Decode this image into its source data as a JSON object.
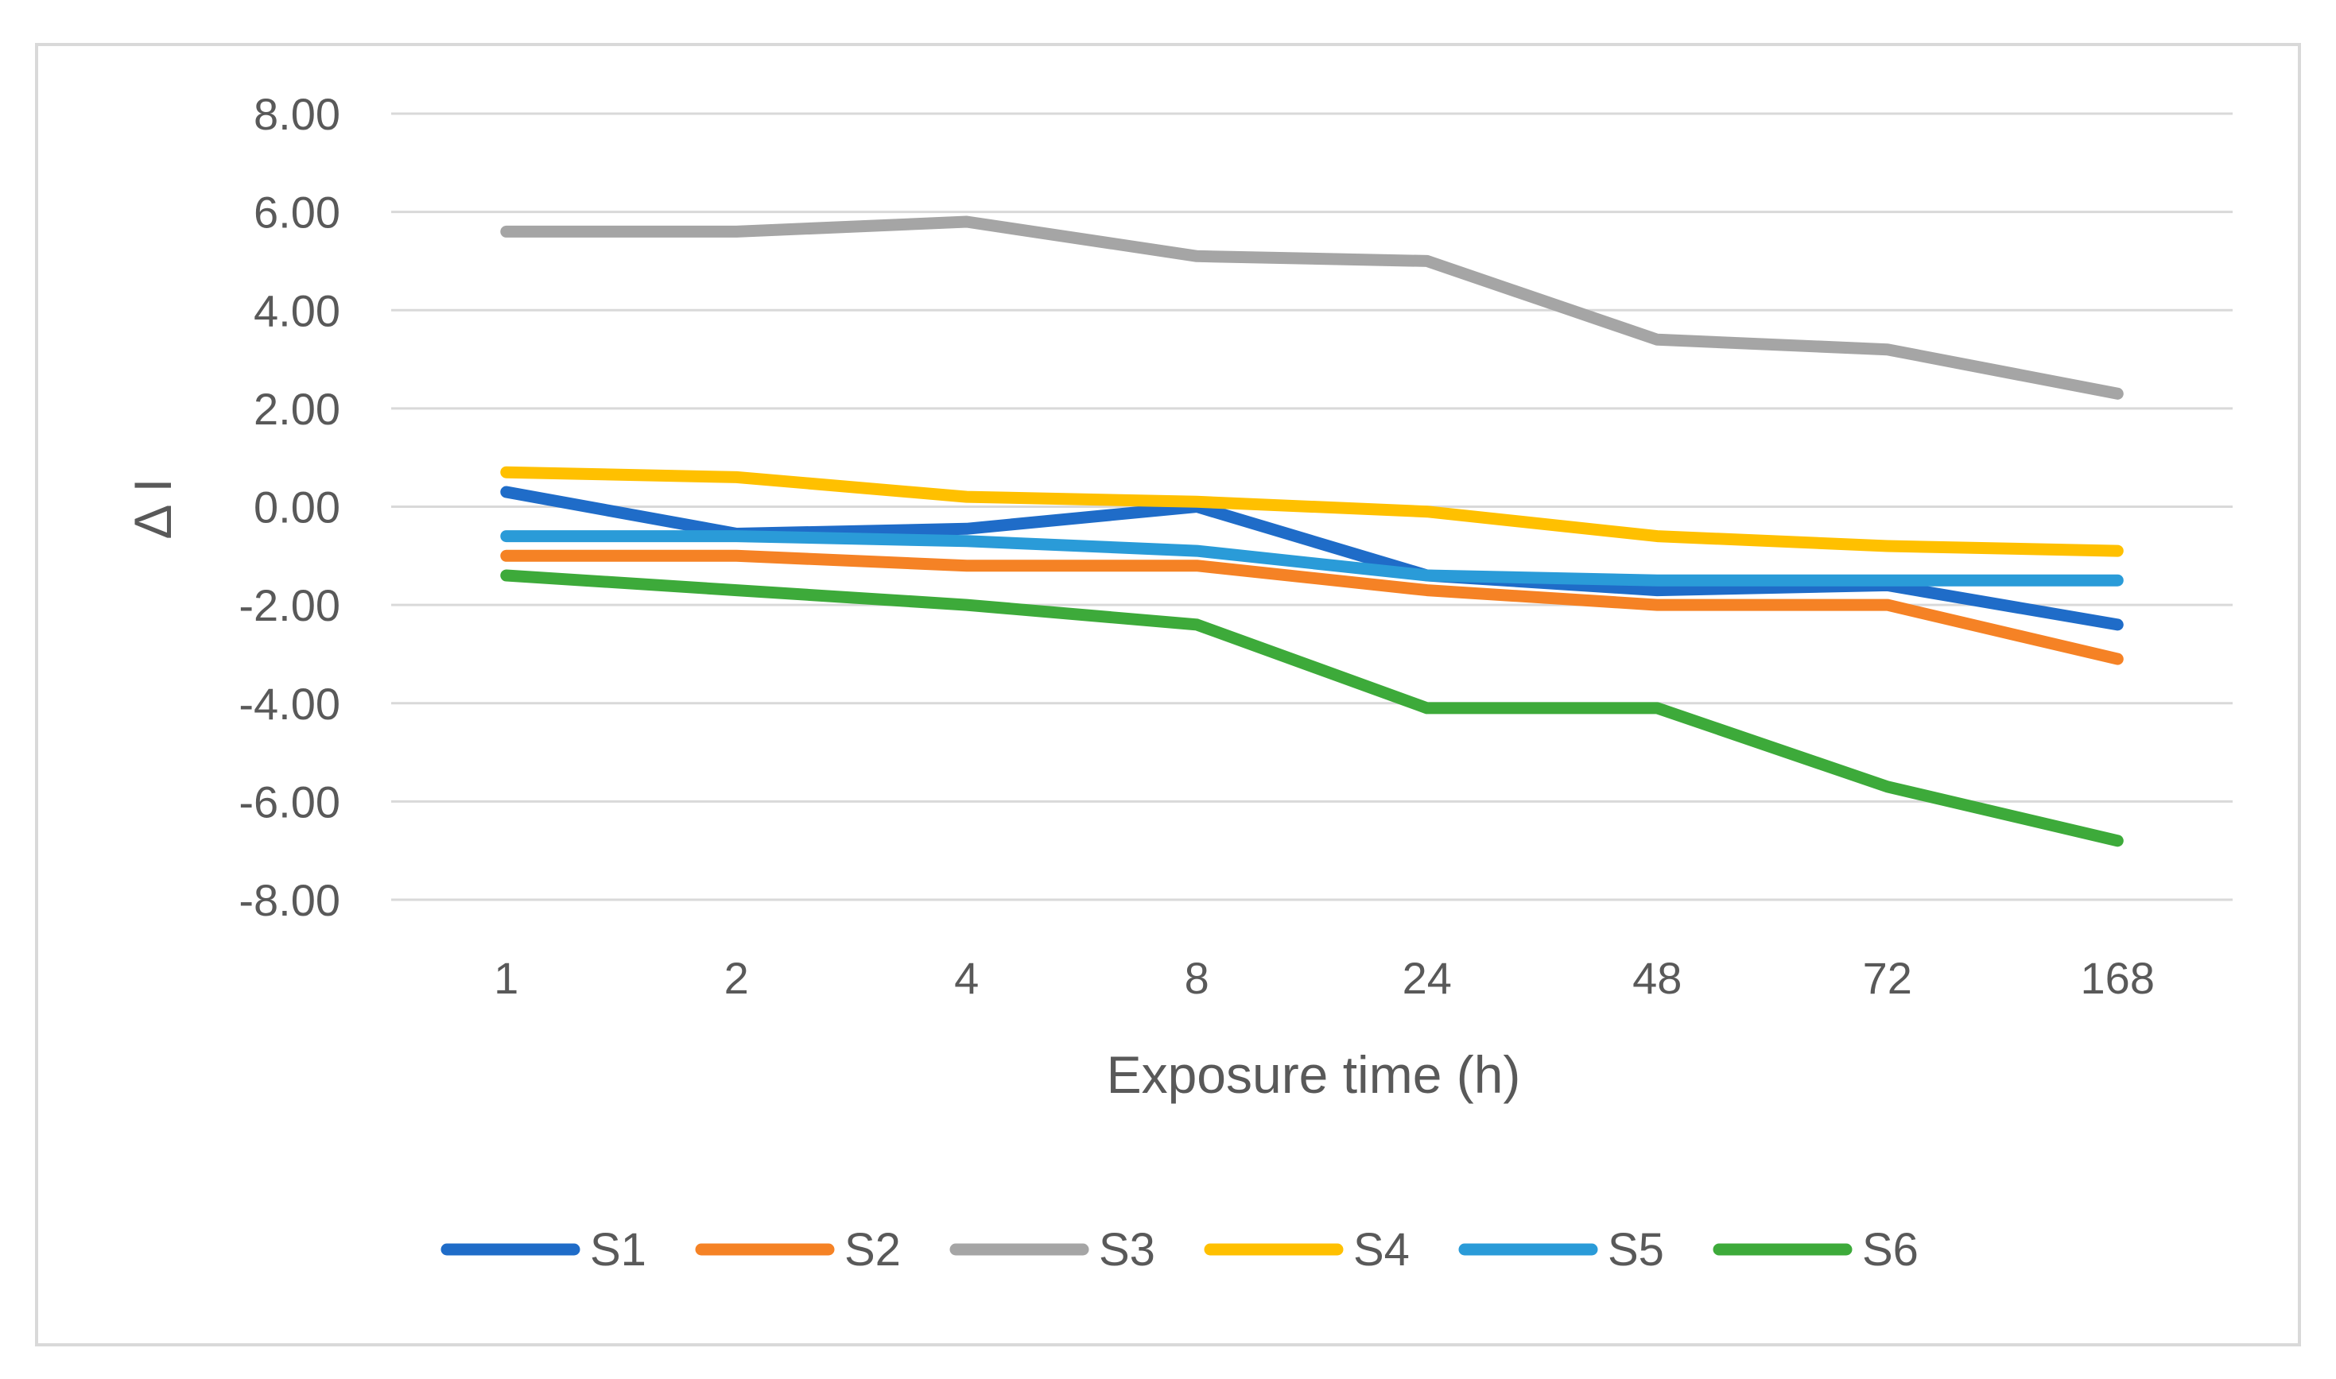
{
  "chart_data": {
    "type": "line",
    "title": "",
    "xlabel": "Exposure time (h)",
    "ylabel": "Δ I",
    "categories": [
      "1",
      "2",
      "4",
      "8",
      "24",
      "48",
      "72",
      "168"
    ],
    "ylim": [
      -8,
      8
    ],
    "yticks": [
      8,
      6,
      4,
      2,
      0,
      -2,
      -4,
      -6,
      -8
    ],
    "ytick_labels": [
      "8.00",
      "6.00",
      "4.00",
      "2.00",
      "0.00",
      "-2.00",
      "-4.00",
      "-6.00",
      "-8.00"
    ],
    "grid": true,
    "legend_position": "bottom",
    "series": [
      {
        "name": "S1",
        "color": "#1f6cc8",
        "values": [
          0.3,
          -0.55,
          -0.45,
          0.0,
          -1.4,
          -1.7,
          -1.6,
          -2.4
        ]
      },
      {
        "name": "S2",
        "color": "#f58225",
        "values": [
          -1.0,
          -1.0,
          -1.2,
          -1.2,
          -1.7,
          -2.0,
          -2.0,
          -3.1
        ]
      },
      {
        "name": "S3",
        "color": "#a5a5a5",
        "values": [
          5.6,
          5.6,
          5.8,
          5.1,
          5.0,
          3.4,
          3.2,
          2.3
        ]
      },
      {
        "name": "S4",
        "color": "#ffc000",
        "values": [
          0.7,
          0.6,
          0.2,
          0.1,
          -0.1,
          -0.6,
          -0.8,
          -0.9
        ]
      },
      {
        "name": "S5",
        "color": "#2a9bd8",
        "values": [
          -0.6,
          -0.6,
          -0.7,
          -0.9,
          -1.4,
          -1.5,
          -1.5,
          -1.5
        ]
      },
      {
        "name": "S6",
        "color": "#3daa3a",
        "values": [
          -1.4,
          -1.7,
          -2.0,
          -2.4,
          -4.1,
          -4.1,
          -5.7,
          -6.8
        ]
      }
    ]
  }
}
